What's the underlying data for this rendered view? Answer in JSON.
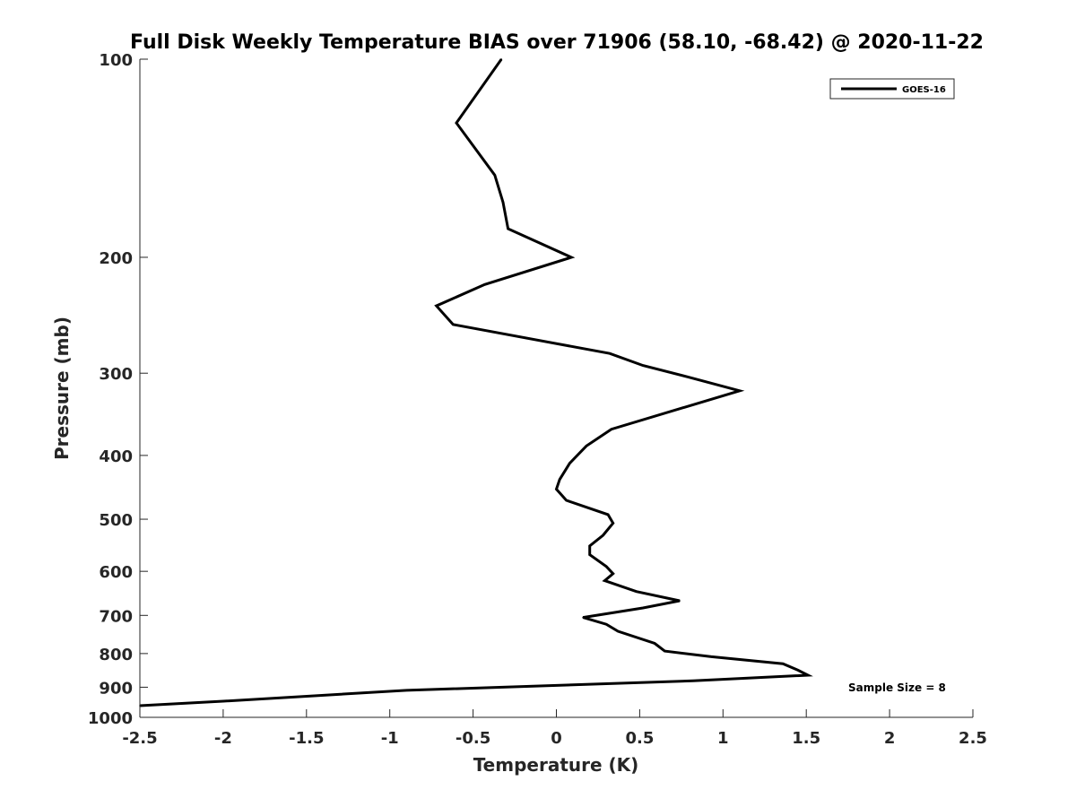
{
  "chart_data": {
    "type": "line",
    "title": "Full Disk Weekly Temperature BIAS over 71906 (58.10, -68.42) @ 2020-11-22",
    "xlabel": "Temperature (K)",
    "ylabel": "Pressure (mb)",
    "xlim": [
      -2.5,
      2.5
    ],
    "ylim": [
      100,
      1000
    ],
    "y_scale": "log",
    "y_reversed": true,
    "x_ticks": [
      -2.5,
      -2,
      -1.5,
      -1,
      -0.5,
      0,
      0.5,
      1,
      1.5,
      2,
      2.5
    ],
    "x_tick_labels": [
      "-2.5",
      "-2",
      "-1.5",
      "-1",
      "-0.5",
      "0",
      "0.5",
      "1",
      "1.5",
      "2",
      "2.5"
    ],
    "y_ticks": [
      100,
      200,
      300,
      400,
      500,
      600,
      700,
      800,
      900,
      1000
    ],
    "y_tick_labels": [
      "100",
      "200",
      "300",
      "400",
      "500",
      "600",
      "700",
      "800",
      "900",
      "1000"
    ],
    "grid": false,
    "legend_position": "top-right",
    "series": [
      {
        "name": "GOES-16",
        "color": "#000000",
        "points": [
          {
            "x": -0.33,
            "p": 100
          },
          {
            "x": -0.6,
            "p": 125
          },
          {
            "x": -0.37,
            "p": 150
          },
          {
            "x": -0.32,
            "p": 165
          },
          {
            "x": -0.29,
            "p": 181
          },
          {
            "x": 0.09,
            "p": 200
          },
          {
            "x": -0.43,
            "p": 220
          },
          {
            "x": -0.72,
            "p": 237
          },
          {
            "x": -0.62,
            "p": 253
          },
          {
            "x": 0.32,
            "p": 280
          },
          {
            "x": 0.52,
            "p": 292
          },
          {
            "x": 0.79,
            "p": 304
          },
          {
            "x": 1.1,
            "p": 319
          },
          {
            "x": 0.33,
            "p": 365
          },
          {
            "x": 0.18,
            "p": 387
          },
          {
            "x": 0.08,
            "p": 411
          },
          {
            "x": 0.02,
            "p": 435
          },
          {
            "x": 0.0,
            "p": 450
          },
          {
            "x": 0.06,
            "p": 468
          },
          {
            "x": 0.31,
            "p": 492
          },
          {
            "x": 0.34,
            "p": 507
          },
          {
            "x": 0.28,
            "p": 529
          },
          {
            "x": 0.2,
            "p": 549
          },
          {
            "x": 0.2,
            "p": 566
          },
          {
            "x": 0.3,
            "p": 590
          },
          {
            "x": 0.34,
            "p": 605
          },
          {
            "x": 0.29,
            "p": 620
          },
          {
            "x": 0.48,
            "p": 644
          },
          {
            "x": 0.74,
            "p": 665
          },
          {
            "x": 0.52,
            "p": 682
          },
          {
            "x": 0.16,
            "p": 705
          },
          {
            "x": 0.3,
            "p": 722
          },
          {
            "x": 0.37,
            "p": 740
          },
          {
            "x": 0.59,
            "p": 772
          },
          {
            "x": 0.65,
            "p": 793
          },
          {
            "x": 0.93,
            "p": 809
          },
          {
            "x": 1.36,
            "p": 829
          },
          {
            "x": 1.45,
            "p": 848
          },
          {
            "x": 1.51,
            "p": 863
          },
          {
            "x": 0.82,
            "p": 880
          },
          {
            "x": -0.9,
            "p": 910
          },
          {
            "x": -2.0,
            "p": 945
          },
          {
            "x": -2.5,
            "p": 960
          }
        ]
      }
    ],
    "annotations": [
      "Sample Size = 8"
    ]
  }
}
